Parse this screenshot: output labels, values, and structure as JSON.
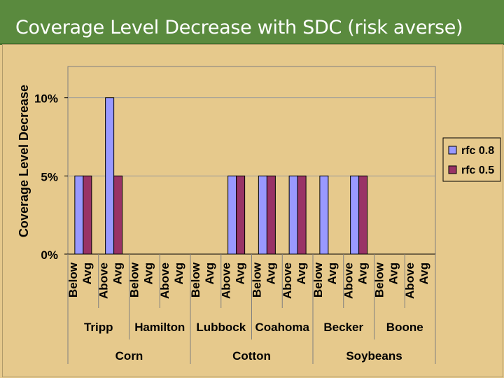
{
  "slide": {
    "title": "Coverage Level Decrease with SDC (risk averse)"
  },
  "chart_data": {
    "type": "bar",
    "ylabel": "Coverage Level Decrease",
    "ylim": [
      0,
      12
    ],
    "yticks": [
      0,
      5,
      10
    ],
    "ytick_labels": [
      "0%",
      "5%",
      "10%"
    ],
    "categories": [
      "Below Avg",
      "Above Avg",
      "Below Avg",
      "Above Avg",
      "Below Avg",
      "Above Avg",
      "Below Avg",
      "Above Avg",
      "Below Avg",
      "Above Avg",
      "Below Avg",
      "Above Avg"
    ],
    "category_lines": [
      [
        "Below",
        "Avg"
      ],
      [
        "Above",
        "Avg"
      ],
      [
        "Below",
        "Avg"
      ],
      [
        "Above",
        "Avg"
      ],
      [
        "Below",
        "Avg"
      ],
      [
        "Above",
        "Avg"
      ],
      [
        "Below",
        "Avg"
      ],
      [
        "Above",
        "Avg"
      ],
      [
        "Below",
        "Avg"
      ],
      [
        "Above",
        "Avg"
      ],
      [
        "Below",
        "Avg"
      ],
      [
        "Above",
        "Avg"
      ]
    ],
    "locations": [
      "Tripp",
      "Hamilton",
      "Lubbock",
      "Coahoma",
      "Becker",
      "Boone"
    ],
    "crops": [
      "Corn",
      "Cotton",
      "Soybeans"
    ],
    "series": [
      {
        "name": "rfc 0.8",
        "color": "#9999ff",
        "values": [
          5,
          10,
          0,
          0,
          0,
          5,
          5,
          5,
          5,
          5,
          0,
          0
        ]
      },
      {
        "name": "rfc 0.5",
        "color": "#993366",
        "values": [
          5,
          5,
          0,
          0,
          0,
          5,
          5,
          5,
          0,
          5,
          0,
          0
        ]
      }
    ],
    "grid": true,
    "legend": "right"
  }
}
